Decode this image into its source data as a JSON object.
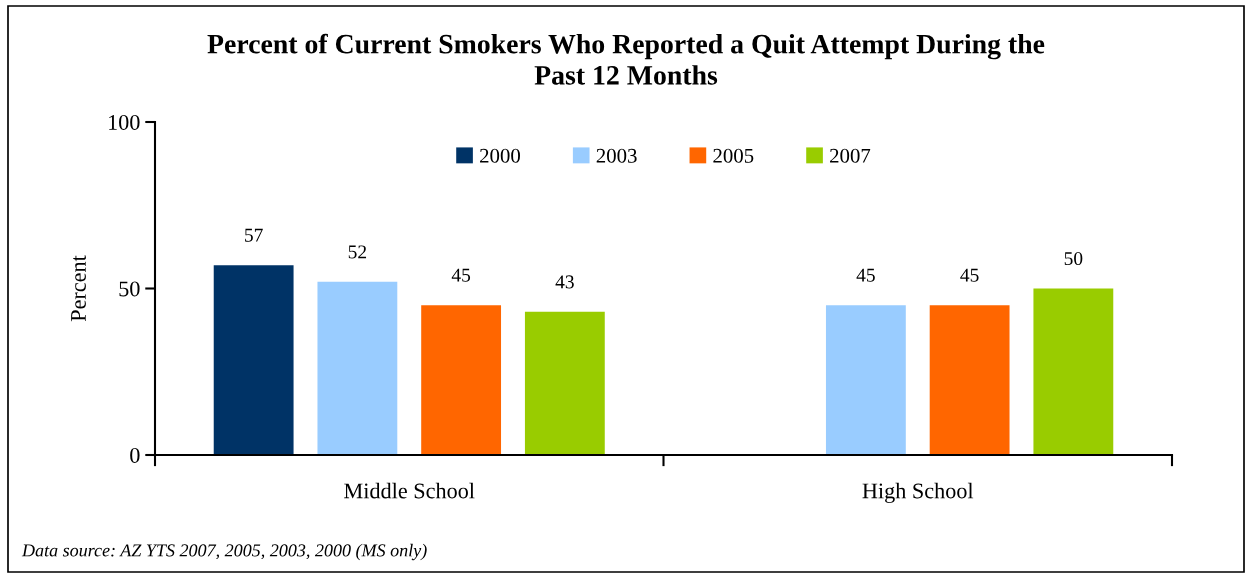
{
  "chart_data": {
    "type": "bar",
    "title": "Percent of Current Smokers Who Reported a Quit Attempt During the\nPast 12 Months",
    "ylabel": "Percent",
    "categories": [
      "Middle School",
      "High School"
    ],
    "series": [
      {
        "name": "2000",
        "color": "#003366",
        "values": [
          57,
          null
        ]
      },
      {
        "name": "2003",
        "color": "#99ccff",
        "values": [
          52,
          45
        ]
      },
      {
        "name": "2005",
        "color": "#ff6600",
        "values": [
          45,
          45
        ]
      },
      {
        "name": "2007",
        "color": "#99cc00",
        "values": [
          43,
          50
        ]
      }
    ],
    "ylim": [
      0,
      100
    ],
    "yticks": [
      0,
      50,
      100
    ],
    "data_labels": true,
    "legend": "top",
    "grid": false,
    "annotations": [
      "Data source: AZ YTS 2007, 2005, 2003, 2000 (MS only)"
    ]
  }
}
